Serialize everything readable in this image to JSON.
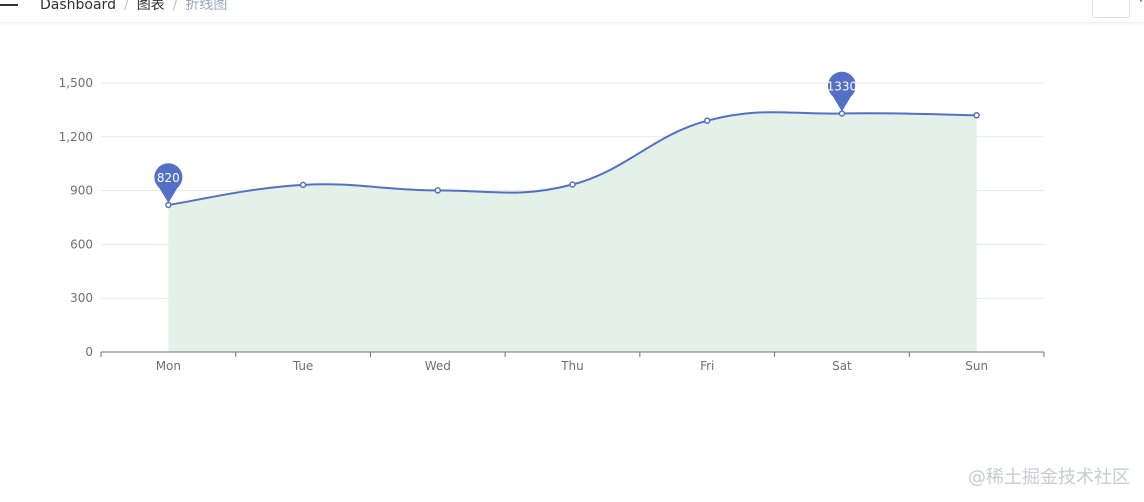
{
  "breadcrumb": {
    "items": [
      "Dashboard",
      "图表",
      "折线图"
    ]
  },
  "topbar": {
    "edge_glyph": "·"
  },
  "chart_data": {
    "type": "line",
    "smooth": true,
    "area": true,
    "categories": [
      "Mon",
      "Tue",
      "Wed",
      "Thu",
      "Fri",
      "Sat",
      "Sun"
    ],
    "series": [
      {
        "values": [
          820,
          932,
          901,
          934,
          1290,
          1330,
          1320
        ]
      }
    ],
    "ylim": [
      0,
      1500
    ],
    "yticks": [
      0,
      300,
      600,
      900,
      1200,
      1500
    ],
    "ytick_labels": [
      "0",
      "300",
      "600",
      "900",
      "1,200",
      "1,500"
    ],
    "markers": [
      {
        "label": "820",
        "category": "Mon",
        "value": 820
      },
      {
        "label": "1330",
        "category": "Sat",
        "value": 1330
      }
    ],
    "colors": {
      "line": "#5470c6",
      "area": "#e3f1e8",
      "marker": "#5470c6",
      "grid": "#e6e8ec",
      "axis": "#6e7079",
      "label": "#6e7079"
    },
    "grid": true
  },
  "watermark": "@稀土掘金技术社区"
}
